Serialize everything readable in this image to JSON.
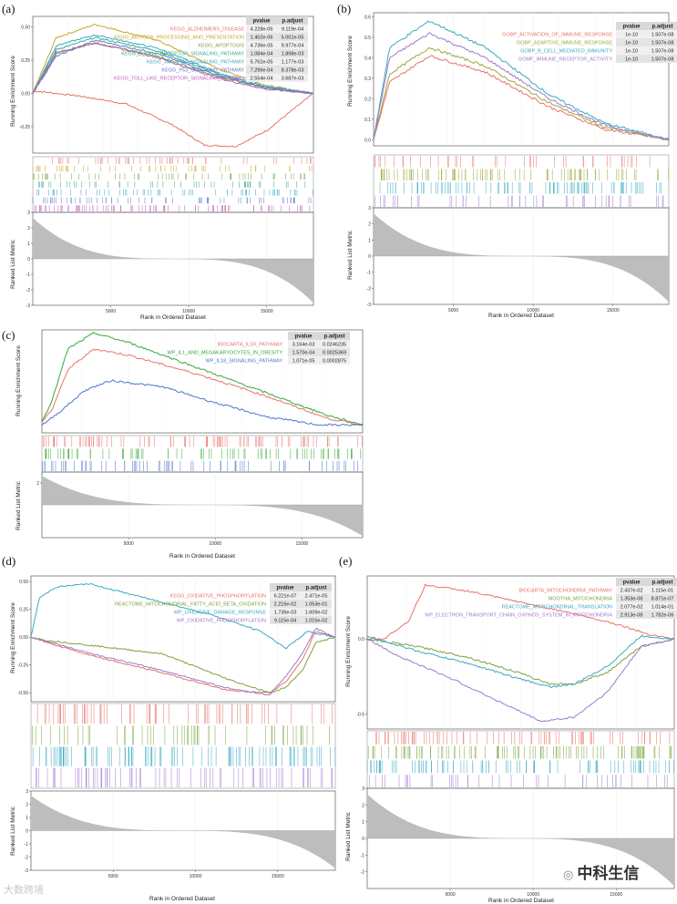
{
  "figure": {
    "rank_axis_label": "Rank in Ordered Dataset",
    "es_axis_label": "Running Enrichment Score",
    "metric_axis_label": "Ranked List Metric",
    "table_headers": [
      "pvalue",
      "p.adjust"
    ]
  },
  "watermark": {
    "left": "大数跨境",
    "right": "中科生信",
    "right_icon": "wechat-icon"
  },
  "chart_data": [
    {
      "panel": "(a)",
      "type": "line",
      "title": "",
      "xlabel": "Rank in Ordered Dataset",
      "ylabel": "Running Enrichment Score",
      "xlim": [
        0,
        18000
      ],
      "ylim": [
        -0.45,
        0.58
      ],
      "yticks": [
        -0.25,
        0.0,
        0.25,
        0.5
      ],
      "yticklabels": [
        "-0.25",
        "0.00",
        "0.25",
        "0.50"
      ],
      "xticks": [
        5000,
        10000,
        15000
      ],
      "xticklabels": [
        "5000",
        "10000",
        "15000"
      ],
      "mticks": [
        3,
        2,
        1,
        0,
        -1,
        -2,
        -3
      ],
      "metric_range": [
        -3,
        3
      ],
      "series": [
        {
          "name": "KEGG_ALZHEIMERS_DISEASE",
          "color": "#e8726a",
          "pvalue": "4.228e-05",
          "padjust": "9.119e-04",
          "x": [
            0,
            3000,
            6000,
            9000,
            11000,
            13000,
            15000,
            18000
          ],
          "y": [
            0.02,
            -0.02,
            -0.08,
            -0.24,
            -0.39,
            -0.4,
            -0.28,
            0.0
          ]
        },
        {
          "name": "KEGG_ANTIGEN_PROCESSING_AND_PRESENTATION",
          "color": "#c8a42a",
          "pvalue": "1.452e-06",
          "padjust": "5.001e-05",
          "x": [
            0,
            1500,
            4000,
            8000,
            12000,
            15000,
            18000
          ],
          "y": [
            0.0,
            0.42,
            0.52,
            0.4,
            0.18,
            0.06,
            0.0
          ]
        },
        {
          "name": "KEGG_APOPTOSIS",
          "color": "#7aa33a",
          "pvalue": "4.736e-05",
          "padjust": "9.977e-04",
          "x": [
            0,
            1500,
            4000,
            8000,
            12000,
            15000,
            18000
          ],
          "y": [
            0.0,
            0.3,
            0.38,
            0.28,
            0.12,
            0.04,
            0.0
          ]
        },
        {
          "name": "KEGG_B_CELL_RECEPTOR_SIGNALING_PATHWAY",
          "color": "#3aa98a",
          "pvalue": "1.084e-04",
          "padjust": "1.898e-03",
          "x": [
            0,
            1500,
            4000,
            8000,
            12000,
            15000,
            18000
          ],
          "y": [
            0.0,
            0.33,
            0.42,
            0.32,
            0.14,
            0.05,
            0.0
          ]
        },
        {
          "name": "KEGG_JAK_STAT_SIGNALING_PATHWAY",
          "color": "#3aa9c2",
          "pvalue": "5.762e-05",
          "padjust": "1.177e-03",
          "x": [
            0,
            1500,
            4000,
            8000,
            12000,
            15000,
            18000
          ],
          "y": [
            0.0,
            0.36,
            0.44,
            0.34,
            0.15,
            0.05,
            0.0
          ]
        },
        {
          "name": "KEGG_P53_SIGNALING_PATHWAY",
          "color": "#5a7ad0",
          "pvalue": "7.296e-04",
          "padjust": "8.378e-03",
          "x": [
            0,
            1500,
            4000,
            8000,
            12000,
            15000,
            18000
          ],
          "y": [
            0.0,
            0.28,
            0.4,
            0.3,
            0.13,
            0.04,
            0.0
          ]
        },
        {
          "name": "KEGG_TOLL_LIKE_RECEPTOR_SIGNALING_PATHWAY",
          "color": "#c060b8",
          "pvalue": "2.554e-04",
          "padjust": "3.687e-03",
          "x": [
            0,
            1500,
            4000,
            8000,
            12000,
            15000,
            18000
          ],
          "y": [
            0.0,
            0.31,
            0.38,
            0.27,
            0.11,
            0.03,
            0.0
          ]
        }
      ]
    },
    {
      "panel": "(b)",
      "type": "line",
      "title": "",
      "xlabel": "Rank in Ordered Dataset",
      "ylabel": "Running Enrichment Score",
      "xlim": [
        0,
        18500
      ],
      "ylim": [
        -0.03,
        0.62
      ],
      "yticks": [
        0.0,
        0.1,
        0.2,
        0.3,
        0.4,
        0.5,
        0.6
      ],
      "yticklabels": [
        "0.0",
        "0.1",
        "0.2",
        "0.3",
        "0.4",
        "0.5",
        "0.6"
      ],
      "xticks": [
        5000,
        10000,
        15000
      ],
      "xticklabels": [
        "5000",
        "10000",
        "15000"
      ],
      "mticks": [
        3,
        2,
        1,
        0,
        -1,
        -2,
        -3
      ],
      "metric_range": [
        -3,
        3
      ],
      "series": [
        {
          "name": "GOBP_ACTIVATION_OF_IMMUNE_RESPONSE",
          "color": "#e8726a",
          "pvalue": "1e-10",
          "padjust": "1.507e-08",
          "x": [
            0,
            1000,
            3500,
            7000,
            11000,
            14500,
            18500
          ],
          "y": [
            0.0,
            0.28,
            0.41,
            0.33,
            0.16,
            0.05,
            0.0
          ]
        },
        {
          "name": "GOBP_ADAPTIVE_IMMUNE_RESPONSE",
          "color": "#9aa83a",
          "pvalue": "1e-10",
          "padjust": "1.507e-08",
          "x": [
            0,
            1000,
            3500,
            7000,
            11000,
            14500,
            18500
          ],
          "y": [
            0.0,
            0.32,
            0.45,
            0.36,
            0.18,
            0.06,
            0.0
          ]
        },
        {
          "name": "GOBP_B_CELL_MEDIATED_IMMUNITY",
          "color": "#3aa9c2",
          "pvalue": "1e-10",
          "padjust": "1.507e-08",
          "x": [
            0,
            1000,
            3500,
            7000,
            11000,
            14500,
            18500
          ],
          "y": [
            0.0,
            0.45,
            0.58,
            0.45,
            0.22,
            0.08,
            0.0
          ]
        },
        {
          "name": "GOMF_IMMUNE_RECEPTOR_ACTIVITY",
          "color": "#a07ad0",
          "pvalue": "1e-10",
          "padjust": "1.507e-08",
          "x": [
            0,
            1000,
            3500,
            7000,
            11000,
            14500,
            18500
          ],
          "y": [
            0.0,
            0.4,
            0.52,
            0.4,
            0.2,
            0.07,
            0.0
          ]
        }
      ]
    },
    {
      "panel": "(c)",
      "type": "line",
      "title": "",
      "xlabel": "Rank in Ordered Dataset",
      "ylabel": "Running Enrichment Score",
      "xlim": [
        0,
        18500
      ],
      "ylim": [
        -0.05,
        0.6
      ],
      "yticks": [],
      "yticklabels": [],
      "xticks": [
        5000,
        10000,
        15000
      ],
      "xticklabels": [
        "5000",
        "10000",
        "15000"
      ],
      "mticks": [
        2
      ],
      "metric_range": [
        -3,
        3
      ],
      "series": [
        {
          "name": "BIOCARTA_IL1R_PATHWAY",
          "color": "#e8726a",
          "pvalue": "3.164e-03",
          "padjust": "0.0246235",
          "x": [
            0,
            600,
            1500,
            3000,
            5000,
            9000,
            13000,
            16500,
            18500
          ],
          "y": [
            0.02,
            0.1,
            0.35,
            0.48,
            0.44,
            0.32,
            0.18,
            0.04,
            0.0
          ]
        },
        {
          "name": "WP_IL1_AND_MEGAKARYOCYTES_IN_OBESITY",
          "color": "#3aa63a",
          "pvalue": "1.570e-04",
          "padjust": "0.0025369",
          "x": [
            0,
            600,
            1500,
            3000,
            5000,
            9000,
            13000,
            16500,
            18500
          ],
          "y": [
            0.02,
            0.16,
            0.48,
            0.58,
            0.52,
            0.36,
            0.2,
            0.06,
            0.0
          ]
        },
        {
          "name": "WP_IL18_SIGNALING_PATHWAY",
          "color": "#4a76c8",
          "pvalue": "1.071e-05",
          "padjust": "0.0002875",
          "x": [
            0,
            1000,
            2500,
            4000,
            7000,
            10000,
            13000,
            16000,
            18500
          ],
          "y": [
            0.0,
            0.08,
            0.22,
            0.28,
            0.24,
            0.14,
            0.05,
            0.0,
            0.0
          ]
        }
      ]
    },
    {
      "panel": "(d)",
      "type": "line",
      "title": "",
      "xlabel": "Rank in Ordered Dataset",
      "ylabel": "Running Enrichment Score",
      "xlim": [
        0,
        18500
      ],
      "ylim": [
        -0.58,
        0.55
      ],
      "yticks": [
        -0.5,
        -0.25,
        0.0,
        0.25,
        0.5
      ],
      "yticklabels": [
        "-0.50",
        "-0.25",
        "0.00",
        "0.25",
        "0.50"
      ],
      "xticks": [
        5000,
        10000,
        15000
      ],
      "xticklabels": [
        "5000",
        "10000",
        "15000"
      ],
      "mticks": [
        3,
        2,
        1,
        0,
        -1,
        -2,
        -3
      ],
      "metric_range": [
        -3,
        3
      ],
      "series": [
        {
          "name": "KEGG_OXIDATIVE_PHOSPHORYLATION",
          "color": "#e8726a",
          "pvalue": "6.221e-07",
          "padjust": "2.471e-05",
          "x": [
            0,
            1000,
            4000,
            8000,
            12000,
            14500,
            15500,
            16500,
            17300,
            18500
          ],
          "y": [
            0.0,
            -0.05,
            -0.18,
            -0.32,
            -0.48,
            -0.5,
            -0.4,
            -0.2,
            0.05,
            0.0
          ]
        },
        {
          "name": "REACTOME_MITOCHONDRIAL_FATTY_ACID_BETA_OXIDATION",
          "color": "#7aa33a",
          "pvalue": "2.215e-02",
          "padjust": "1.053e-01",
          "x": [
            0,
            1000,
            4000,
            8000,
            12000,
            14500,
            15500,
            16500,
            17300,
            18500
          ],
          "y": [
            0.0,
            -0.03,
            -0.08,
            -0.15,
            -0.38,
            -0.5,
            -0.45,
            -0.3,
            -0.05,
            0.0
          ]
        },
        {
          "name": "WP_OXIDATIVE_DAMAGE_RESPONSE",
          "color": "#3aa9c2",
          "pvalue": "1.736e-03",
          "padjust": "1.609e-02",
          "x": [
            0,
            500,
            1500,
            3500,
            7000,
            11000,
            14000,
            15500,
            16800,
            18500
          ],
          "y": [
            0.0,
            0.35,
            0.45,
            0.48,
            0.35,
            0.2,
            0.05,
            -0.1,
            0.05,
            0.0
          ]
        },
        {
          "name": "WP_OXIDATIVE_PHOSPHORYLATION",
          "color": "#a07ad0",
          "pvalue": "9.115e-04",
          "padjust": "1.015e-02",
          "x": [
            0,
            1000,
            4000,
            8000,
            12000,
            14500,
            15500,
            16500,
            17300,
            18500
          ],
          "y": [
            0.0,
            -0.04,
            -0.16,
            -0.3,
            -0.46,
            -0.52,
            -0.35,
            -0.15,
            0.08,
            0.0
          ]
        }
      ]
    },
    {
      "panel": "(e)",
      "type": "line",
      "title": "",
      "xlabel": "Rank in Ordered Dataset",
      "ylabel": "Running Enrichment Score",
      "xlim": [
        0,
        18500
      ],
      "ylim": [
        -0.6,
        0.42
      ],
      "yticks": [
        -0.5,
        0.0
      ],
      "yticklabels": [
        "-0.5",
        "0.0"
      ],
      "xticks": [
        5000,
        10000,
        15000
      ],
      "xticklabels": [
        "5000",
        "10000",
        "15000"
      ],
      "mticks": [
        3,
        2,
        1,
        0,
        -1,
        -2
      ],
      "metric_range": [
        -3,
        3
      ],
      "series": [
        {
          "name": "BIOCARTA_MITOCHONDRIA_PATHWAY",
          "color": "#e8726a",
          "pvalue": "2.437e-02",
          "padjust": "1.115e-01",
          "x": [
            0,
            1000,
            2500,
            3500,
            6000,
            9000,
            12000,
            15000,
            17000,
            18500
          ],
          "y": [
            0.0,
            0.0,
            0.12,
            0.36,
            0.32,
            0.25,
            0.18,
            0.1,
            0.03,
            0.0
          ]
        },
        {
          "name": "MOOTHA_MITOCHONDRIA",
          "color": "#7aa33a",
          "pvalue": "1.353e-08",
          "padjust": "8.871e-07",
          "x": [
            0,
            3000,
            6000,
            9000,
            11000,
            12500,
            14500,
            16500,
            18500
          ],
          "y": [
            0.0,
            -0.05,
            -0.12,
            -0.22,
            -0.3,
            -0.3,
            -0.22,
            -0.05,
            0.0
          ]
        },
        {
          "name": "REACTOME_MITOCHONDRIAL_TRANSLATION",
          "color": "#3aa9c2",
          "pvalue": "2.077e-02",
          "padjust": "1.014e-01",
          "x": [
            0,
            3000,
            6000,
            9000,
            11000,
            12500,
            14500,
            16500,
            18500
          ],
          "y": [
            0.02,
            -0.08,
            -0.16,
            -0.26,
            -0.32,
            -0.3,
            -0.18,
            0.02,
            0.0
          ]
        },
        {
          "name": "WP_ELECTRON_TRANSPORT_CHAIN_OXPHOS_SYSTEM_IN_MITOCHONDRIA",
          "color": "#a07ad0",
          "pvalue": "2.913e-08",
          "padjust": "1.782e-06",
          "x": [
            0,
            2000,
            5000,
            8000,
            10500,
            12500,
            14500,
            16500,
            18500
          ],
          "y": [
            0.0,
            -0.12,
            -0.26,
            -0.42,
            -0.55,
            -0.52,
            -0.35,
            -0.05,
            0.0
          ]
        }
      ]
    }
  ]
}
